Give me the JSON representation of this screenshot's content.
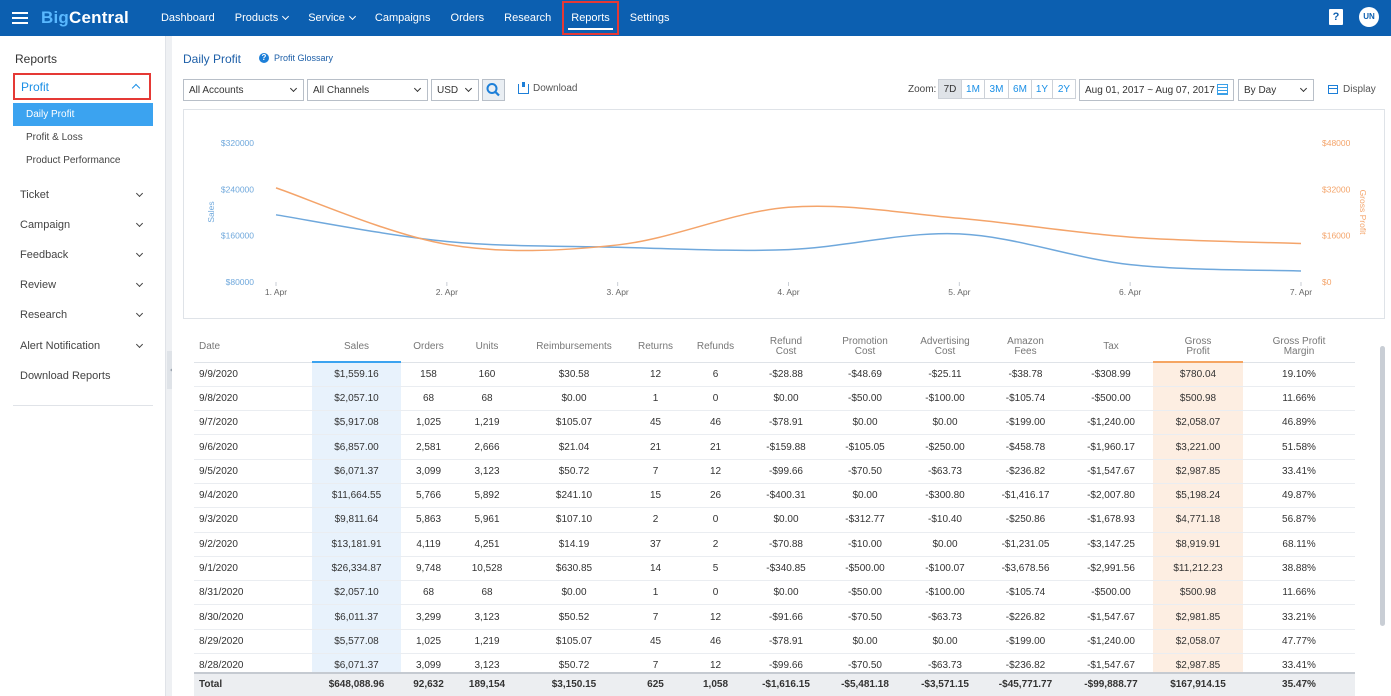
{
  "topnav": {
    "logo_part1": "Big",
    "logo_part2": "Central",
    "items": [
      {
        "label": "Dashboard",
        "dropdown": false
      },
      {
        "label": "Products",
        "dropdown": true
      },
      {
        "label": "Service",
        "dropdown": true
      },
      {
        "label": "Campaigns",
        "dropdown": false
      },
      {
        "label": "Orders",
        "dropdown": false
      },
      {
        "label": "Research",
        "dropdown": false
      },
      {
        "label": "Reports",
        "dropdown": false,
        "active": true
      },
      {
        "label": "Settings",
        "dropdown": false
      }
    ],
    "help_glyph": "?",
    "avatar_initials": "UN"
  },
  "sidebar": {
    "title": "Reports",
    "section": "Profit",
    "subitems": [
      "Daily Profit",
      "Profit & Loss",
      "Product Performance"
    ],
    "items": [
      "Ticket",
      "Campaign",
      "Feedback",
      "Review",
      "Research",
      "Alert Notification",
      "Download Reports"
    ]
  },
  "toolbar": {
    "page_title": "Daily Profit",
    "glossary_label": "Profit Glossary",
    "accounts_value": "All Accounts",
    "channels_value": "All Channels",
    "currency_value": "USD",
    "download_label": "Download",
    "zoom_label": "Zoom:",
    "zoom_options": [
      "7D",
      "1M",
      "3M",
      "6M",
      "1Y",
      "2Y"
    ],
    "zoom_active": "7D",
    "date_range": "Aug 01, 2017 ~ Aug 07, 2017",
    "granularity": "By Day",
    "display_label": "Display"
  },
  "colors": {
    "nav_bg": "#0c5fb0",
    "sales_line": "#6fa8dc",
    "profit_line": "#f4a46a",
    "accent": "#3ba3f0"
  },
  "chart_data": {
    "type": "line",
    "x": [
      "1. Apr",
      "2. Apr",
      "3. Apr",
      "4. Apr",
      "5. Apr",
      "6. Apr",
      "7. Apr"
    ],
    "left_axis": {
      "label": "Sales",
      "ticks": [
        "$80000",
        "$160000",
        "$240000",
        "$320000"
      ],
      "range": [
        80000,
        320000
      ]
    },
    "right_axis": {
      "label": "Gross Profit",
      "ticks": [
        "$0",
        "$16000",
        "$32000",
        "$48000"
      ],
      "range": [
        0,
        48000
      ]
    },
    "series": [
      {
        "name": "Sales",
        "axis": "left",
        "values": [
          196000,
          150000,
          140000,
          136000,
          163000,
          110000,
          99000
        ]
      },
      {
        "name": "Gross Profit",
        "axis": "right",
        "values": [
          32500,
          13000,
          12800,
          25800,
          22000,
          15500,
          13300
        ]
      }
    ]
  },
  "table": {
    "headers": [
      "Date",
      "Sales",
      "Orders",
      "Units",
      "Reimbursements",
      "Returns",
      "Refunds",
      "Refund\nCost",
      "Promotion\nCost",
      "Advertising\nCost",
      "Amazon\nFees",
      "Tax",
      "Gross\nProfit",
      "Gross Profit\nMargin"
    ],
    "rows": [
      [
        "9/9/2020",
        "$1,559.16",
        "158",
        "160",
        "$30.58",
        "12",
        "6",
        "-$28.88",
        "-$48.69",
        "-$25.11",
        "-$38.78",
        "-$308.99",
        "$780.04",
        "19.10%"
      ],
      [
        "9/8/2020",
        "$2,057.10",
        "68",
        "68",
        "$0.00",
        "1",
        "0",
        "$0.00",
        "-$50.00",
        "-$100.00",
        "-$105.74",
        "-$500.00",
        "$500.98",
        "11.66%"
      ],
      [
        "9/7/2020",
        "$5,917.08",
        "1,025",
        "1,219",
        "$105.07",
        "45",
        "46",
        "-$78.91",
        "$0.00",
        "$0.00",
        "-$199.00",
        "-$1,240.00",
        "$2,058.07",
        "46.89%"
      ],
      [
        "9/6/2020",
        "$6,857.00",
        "2,581",
        "2,666",
        "$21.04",
        "21",
        "21",
        "-$159.88",
        "-$105.05",
        "-$250.00",
        "-$458.78",
        "-$1,960.17",
        "$3,221.00",
        "51.58%"
      ],
      [
        "9/5/2020",
        "$6,071.37",
        "3,099",
        "3,123",
        "$50.72",
        "7",
        "12",
        "-$99.66",
        "-$70.50",
        "-$63.73",
        "-$236.82",
        "-$1,547.67",
        "$2,987.85",
        "33.41%"
      ],
      [
        "9/4/2020",
        "$11,664.55",
        "5,766",
        "5,892",
        "$241.10",
        "15",
        "26",
        "-$400.31",
        "$0.00",
        "-$300.80",
        "-$1,416.17",
        "-$2,007.80",
        "$5,198.24",
        "49.87%"
      ],
      [
        "9/3/2020",
        "$9,811.64",
        "5,863",
        "5,961",
        "$107.10",
        "2",
        "0",
        "$0.00",
        "-$312.77",
        "-$10.40",
        "-$250.86",
        "-$1,678.93",
        "$4,771.18",
        "56.87%"
      ],
      [
        "9/2/2020",
        "$13,181.91",
        "4,119",
        "4,251",
        "$14.19",
        "37",
        "2",
        "-$70.88",
        "-$10.00",
        "$0.00",
        "-$1,231.05",
        "-$3,147.25",
        "$8,919.91",
        "68.11%"
      ],
      [
        "9/1/2020",
        "$26,334.87",
        "9,748",
        "10,528",
        "$630.85",
        "14",
        "5",
        "-$340.85",
        "-$500.00",
        "-$100.07",
        "-$3,678.56",
        "-$2,991.56",
        "$11,212.23",
        "38.88%"
      ],
      [
        "8/31/2020",
        "$2,057.10",
        "68",
        "68",
        "$0.00",
        "1",
        "0",
        "$0.00",
        "-$50.00",
        "-$100.00",
        "-$105.74",
        "-$500.00",
        "$500.98",
        "11.66%"
      ],
      [
        "8/30/2020",
        "$6,011.37",
        "3,299",
        "3,123",
        "$50.52",
        "7",
        "12",
        "-$91.66",
        "-$70.50",
        "-$63.73",
        "-$226.82",
        "-$1,547.67",
        "$2,981.85",
        "33.21%"
      ],
      [
        "8/29/2020",
        "$5,577.08",
        "1,025",
        "1,219",
        "$105.07",
        "45",
        "46",
        "-$78.91",
        "$0.00",
        "$0.00",
        "-$199.00",
        "-$1,240.00",
        "$2,058.07",
        "47.77%"
      ],
      [
        "8/28/2020",
        "$6,071.37",
        "3,099",
        "3,123",
        "$50.72",
        "7",
        "12",
        "-$99.66",
        "-$70.50",
        "-$63.73",
        "-$236.82",
        "-$1,547.67",
        "$2,987.85",
        "33.41%"
      ]
    ],
    "total": [
      "Total",
      "$648,088.96",
      "92,632",
      "189,154",
      "$3,150.15",
      "625",
      "1,058",
      "-$1,616.15",
      "-$5,481.18",
      "-$3,571.15",
      "-$45,771.77",
      "-$99,888.77",
      "$167,914.15",
      "35.47%"
    ]
  }
}
